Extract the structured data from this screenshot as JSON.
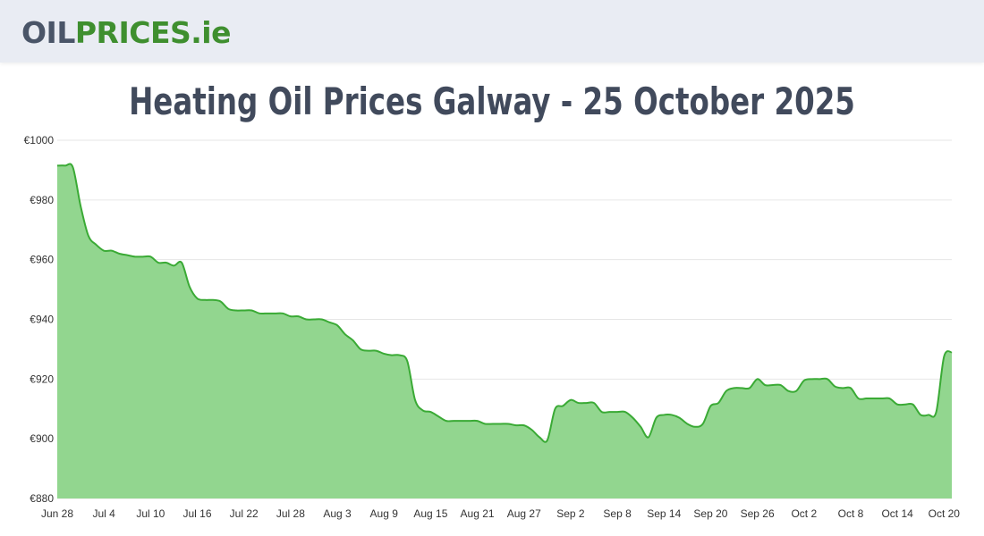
{
  "header": {
    "logo_oil": "OIL",
    "logo_prices": "PRICES",
    "logo_ie": ".ie"
  },
  "page_title": "Heating Oil Prices Galway - 25 October 2025",
  "colors": {
    "line": "#3aaa35",
    "fill": "#92d68f",
    "grid": "#e6e6e6",
    "logo_gray": "#4a5568",
    "logo_green": "#3f8f2f",
    "title": "#414a5c"
  },
  "chart_data": {
    "type": "area",
    "title": "",
    "xlabel": "",
    "ylabel": "",
    "ylim": [
      880,
      1000
    ],
    "y_ticks": [
      "€1000",
      "€980",
      "€960",
      "€940",
      "€920",
      "€900",
      "€880"
    ],
    "y_tick_values": [
      1000,
      980,
      960,
      940,
      920,
      900,
      880
    ],
    "x_ticks": [
      "Jun 28",
      "Jul 4",
      "Jul 10",
      "Jul 16",
      "Jul 22",
      "Jul 28",
      "Aug 3",
      "Aug 9",
      "Aug 15",
      "Aug 21",
      "Aug 27",
      "Sep 2",
      "Sep 8",
      "Sep 14",
      "Sep 20",
      "Sep 26",
      "Oct 2",
      "Oct 8",
      "Oct 14",
      "Oct 20"
    ],
    "x_start": "Jun 28",
    "x_end": "Oct 25",
    "grid": true,
    "legend": "none",
    "series": [
      {
        "values": [
          991.5,
          991.5,
          991,
          978,
          968,
          965,
          963,
          963,
          962,
          961.5,
          961,
          961,
          961,
          959,
          959,
          958,
          959,
          951,
          947,
          946.5,
          946.5,
          946,
          943.5,
          943,
          943,
          943,
          942,
          942,
          942,
          942,
          941,
          941,
          940,
          940,
          940,
          939,
          938,
          935,
          933,
          930,
          929.5,
          929.5,
          928.5,
          928,
          928,
          926,
          913,
          909.5,
          909,
          907.5,
          906,
          906,
          906,
          906,
          906,
          905,
          905,
          905,
          905,
          904.5,
          904.5,
          903,
          900.5,
          899.5,
          910,
          911,
          913,
          912,
          912,
          912,
          909,
          909,
          909,
          909,
          907,
          904,
          900.5,
          907,
          908,
          908,
          907,
          905,
          904,
          905,
          911,
          912,
          916,
          917,
          917,
          917,
          920,
          918,
          918,
          918,
          916,
          916,
          919.5,
          920,
          920,
          920,
          917.5,
          917,
          917,
          913.5,
          913.5,
          913.5,
          913.5,
          913.5,
          911.5,
          911.5,
          911.5,
          908,
          908,
          909,
          927.5,
          929
        ]
      }
    ]
  }
}
